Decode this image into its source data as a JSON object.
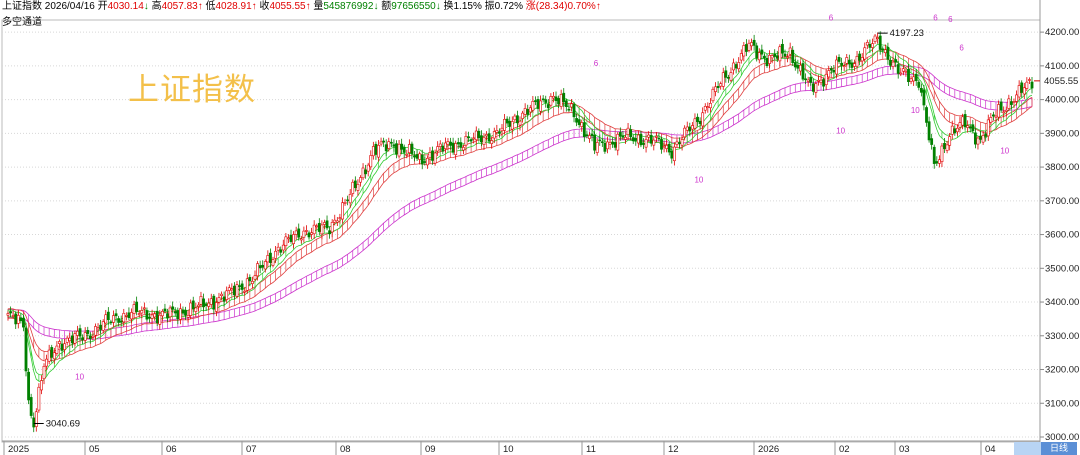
{
  "info": {
    "name": "上证指数",
    "date": "2026/04/16",
    "open_label": "开",
    "open_value": "4030.14",
    "open_arrow": "↓",
    "high_label": "高",
    "high_value": "4057.83",
    "high_arrow": "↑",
    "low_label": "低",
    "low_value": "4028.91",
    "low_arrow": "↑",
    "close_label": "收",
    "close_value": "4055.55",
    "close_arrow": "↑",
    "volume_label": "量",
    "volume_value": "545876992",
    "volume_arrow": "↓",
    "amount_label": "额",
    "amount_value": "97656550",
    "amount_arrow": "↓",
    "turnover_label": "换",
    "turnover_value": "1.15%",
    "amplitude_label": "振",
    "amplitude_value": "0.72%",
    "change_label": "涨",
    "change_value": "(28.34)0.70%",
    "change_arrow": "↑"
  },
  "mode_label": "多空通道",
  "watermark": "上证指数",
  "period_button": "日线",
  "colors": {
    "up": "#e00000",
    "down": "#008000",
    "channel_mid": "#e04040",
    "channel_long": "#cc33cc",
    "channel_short_up": "#33cc33",
    "channel_short_dn": "#2244aa",
    "price_tag": "#d00000"
  },
  "chart_data": {
    "type": "candlestick",
    "ylim": [
      3000,
      4230
    ],
    "y_ticks": [
      "3000.00",
      "3100.00",
      "3200.00",
      "3300.00",
      "3400.00",
      "3500.00",
      "3600.00",
      "3700.00",
      "3800.00",
      "3900.00",
      "4000.00",
      "4100.00",
      "4200.00"
    ],
    "x_month_labels": [
      "2025",
      "05",
      "06",
      "07",
      "08",
      "09",
      "10",
      "11",
      "12",
      "2026",
      "02",
      "03",
      "04"
    ],
    "last_price_tag": "4055.55",
    "extreme_high": {
      "label": "4197.23"
    },
    "extreme_low": {
      "label": "3040.69"
    },
    "annotations": [
      {
        "text": "6",
        "x_month_index": 10.2,
        "y": 4235
      },
      {
        "text": "6",
        "x_month_index": 7.35,
        "y": 4100
      },
      {
        "text": "6",
        "x_month_index": 11.6,
        "y": 4235
      },
      {
        "text": "6",
        "x_month_index": 11.8,
        "y": 4230
      },
      {
        "text": "6",
        "x_month_index": 11.95,
        "y": 4145
      },
      {
        "text": "10",
        "x_month_index": 0.9,
        "y": 3170
      },
      {
        "text": "10",
        "x_month_index": 8.6,
        "y": 3755
      },
      {
        "text": "10",
        "x_month_index": 10.3,
        "y": 3900
      },
      {
        "text": "10",
        "x_month_index": 11.3,
        "y": 3960
      },
      {
        "text": "10",
        "x_month_index": 12.4,
        "y": 3840
      }
    ],
    "key_points": [
      {
        "i": 0,
        "v": 3360
      },
      {
        "i": 6,
        "v": 3330
      },
      {
        "i": 8,
        "v": 3100
      },
      {
        "i": 10,
        "v": 3045
      },
      {
        "i": 14,
        "v": 3210
      },
      {
        "i": 20,
        "v": 3280
      },
      {
        "i": 30,
        "v": 3300
      },
      {
        "i": 38,
        "v": 3340
      },
      {
        "i": 48,
        "v": 3370
      },
      {
        "i": 60,
        "v": 3360
      },
      {
        "i": 72,
        "v": 3380
      },
      {
        "i": 85,
        "v": 3420
      },
      {
        "i": 95,
        "v": 3470
      },
      {
        "i": 105,
        "v": 3560
      },
      {
        "i": 115,
        "v": 3610
      },
      {
        "i": 125,
        "v": 3620
      },
      {
        "i": 135,
        "v": 3740
      },
      {
        "i": 142,
        "v": 3850
      },
      {
        "i": 150,
        "v": 3870
      },
      {
        "i": 160,
        "v": 3820
      },
      {
        "i": 170,
        "v": 3860
      },
      {
        "i": 180,
        "v": 3880
      },
      {
        "i": 190,
        "v": 3900
      },
      {
        "i": 200,
        "v": 3960
      },
      {
        "i": 212,
        "v": 4010
      },
      {
        "i": 220,
        "v": 3960
      },
      {
        "i": 228,
        "v": 3860
      },
      {
        "i": 240,
        "v": 3890
      },
      {
        "i": 250,
        "v": 3880
      },
      {
        "i": 258,
        "v": 3850
      },
      {
        "i": 268,
        "v": 3940
      },
      {
        "i": 278,
        "v": 4060
      },
      {
        "i": 288,
        "v": 4160
      },
      {
        "i": 296,
        "v": 4120
      },
      {
        "i": 304,
        "v": 4140
      },
      {
        "i": 312,
        "v": 4030
      },
      {
        "i": 320,
        "v": 4090
      },
      {
        "i": 330,
        "v": 4120
      },
      {
        "i": 338,
        "v": 4180
      },
      {
        "i": 346,
        "v": 4080
      },
      {
        "i": 354,
        "v": 4060
      },
      {
        "i": 360,
        "v": 3800
      },
      {
        "i": 366,
        "v": 3900
      },
      {
        "i": 372,
        "v": 3930
      },
      {
        "i": 378,
        "v": 3880
      },
      {
        "i": 384,
        "v": 3960
      },
      {
        "i": 392,
        "v": 4010
      },
      {
        "i": 398,
        "v": 4055
      }
    ]
  }
}
